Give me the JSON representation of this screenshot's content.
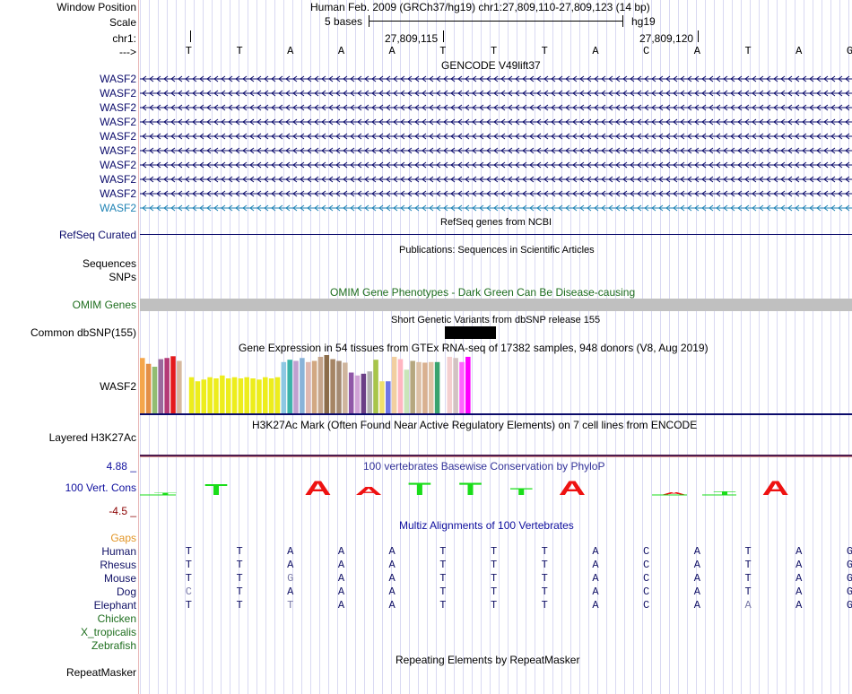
{
  "labels": {
    "window_position": "Window Position",
    "scale": "Scale",
    "chrom": "chr1:",
    "arrow": "--->",
    "wasf2_rows": [
      "WASF2",
      "WASF2",
      "WASF2",
      "WASF2",
      "WASF2",
      "WASF2",
      "WASF2",
      "WASF2",
      "WASF2",
      "WASF2"
    ],
    "refseq": "RefSeq Curated",
    "sequences": "Sequences",
    "snps": "SNPs",
    "omim": "OMIM Genes",
    "dbsnp": "Common dbSNP(155)",
    "gtex": "WASF2",
    "h3k27ac": "Layered H3K27Ac",
    "phylop_max": "4.88 _",
    "phylop_name": "100 Vert. Cons",
    "phylop_min": "-4.5 _",
    "gaps": "Gaps",
    "species": [
      "Human",
      "Rhesus",
      "Mouse",
      "Dog",
      "Elephant",
      "Chicken",
      "X_tropicalis",
      "Zebrafish"
    ],
    "repeatmasker": "RepeatMasker"
  },
  "header": {
    "position": "Human Feb. 2009 (GRCh37/hg19)   chr1:27,809,110-27,809,123 (14 bp)",
    "scale_label": "5 bases",
    "assembly": "hg19",
    "coord1": "27,809,115",
    "coord2": "27,809,120"
  },
  "sequence": [
    "T",
    "T",
    "A",
    "A",
    "A",
    "T",
    "T",
    "T",
    "A",
    "C",
    "A",
    "T",
    "A",
    "G"
  ],
  "track_titles": {
    "gencode": "GENCODE V49lift37",
    "refseq": "RefSeq genes from NCBI",
    "publications": "Publications: Sequences in Scientific Articles",
    "omim": "OMIM Gene Phenotypes - Dark Green Can Be Disease-causing",
    "dbsnp": "Short Genetic Variants from dbSNP release 155",
    "gtex": "Gene Expression in 54 tissues from GTEx RNA-seq of 17382 samples, 948 donors (V8, Aug 2019)",
    "h3k27ac": "H3K27Ac Mark (Often Found Near Active Regulatory Elements) on 7 cell lines from ENCODE",
    "phylop": "100 vertebrates Basewise Conservation by PhyloP",
    "multiz": "Multiz Alignments of 100 Vertebrates",
    "repeatmasker": "Repeating Elements by RepeatMasker"
  },
  "alignments": [
    [
      "T",
      "T",
      "A",
      "A",
      "A",
      "T",
      "T",
      "T",
      "A",
      "C",
      "A",
      "T",
      "A",
      "G"
    ],
    [
      "T",
      "T",
      "A",
      "A",
      "A",
      "T",
      "T",
      "T",
      "A",
      "C",
      "A",
      "T",
      "A",
      "G"
    ],
    [
      "T",
      "T",
      "G",
      "A",
      "A",
      "T",
      "T",
      "T",
      "A",
      "C",
      "A",
      "T",
      "A",
      "G"
    ],
    [
      "C",
      "T",
      "A",
      "A",
      "A",
      "T",
      "T",
      "T",
      "A",
      "C",
      "A",
      "T",
      "A",
      "G"
    ],
    [
      "T",
      "T",
      "T",
      "A",
      "A",
      "T",
      "T",
      "T",
      "A",
      "C",
      "A",
      "A",
      "A",
      "G"
    ]
  ],
  "alignment_dim": [
    [],
    [],
    [
      2
    ],
    [
      0
    ],
    [
      2,
      11
    ]
  ],
  "phylop": [
    0.3,
    1.6,
    0,
    2.0,
    1.2,
    1.8,
    1.8,
    1.0,
    2.0,
    0,
    0.4,
    0.5,
    2.0,
    0
  ],
  "gtex_colors": [
    "#f5a64b",
    "#e48f46",
    "#92bd73",
    "#9b6a9d",
    "#b43a77",
    "#e41a1c",
    "#d7b89e",
    "#ffffff",
    "#eded1c",
    "#eded1c",
    "#eded1c",
    "#eded1c",
    "#eded1c",
    "#eded1c",
    "#eded1c",
    "#eded1c",
    "#eded1c",
    "#eded1c",
    "#eded1c",
    "#eded1c",
    "#eded1c",
    "#eded1c",
    "#eded1c",
    "#8dc8e3",
    "#3cb3a9",
    "#c0a0d0",
    "#89b3d8",
    "#e0b8b0",
    "#d2a882",
    "#c5a58c",
    "#8b6c4a",
    "#a68564",
    "#a48a72",
    "#cfb59d",
    "#9057a8",
    "#d0a2d6",
    "#6b3f86",
    "#b0b0b0",
    "#a8c54a",
    "#f0e06c",
    "#6f76e6",
    "#f2cfa0",
    "#ffb6c1",
    "#c9e5b9",
    "#b5a77f",
    "#dcc0a6",
    "#d9b190",
    "#e1c3a5",
    "#3aa36e",
    "#ffffff",
    "#f4cfcf",
    "#d2c2c2",
    "#ff66ff",
    "#ff00ff"
  ],
  "gtex_values": [
    0.95,
    0.85,
    0.8,
    0.93,
    0.95,
    0.98,
    0.9,
    0.0,
    0.62,
    0.55,
    0.58,
    0.62,
    0.6,
    0.65,
    0.6,
    0.62,
    0.6,
    0.62,
    0.6,
    0.58,
    0.62,
    0.6,
    0.62,
    0.88,
    0.92,
    0.9,
    0.95,
    0.88,
    0.9,
    0.97,
    1.0,
    0.93,
    0.9,
    0.87,
    0.7,
    0.65,
    0.68,
    0.72,
    0.92,
    0.55,
    0.55,
    0.97,
    0.93,
    0.75,
    0.9,
    0.88,
    0.87,
    0.88,
    0.88,
    0.0,
    0.97,
    0.95,
    0.88,
    0.97
  ],
  "colors": {
    "navy": "#0b0b6b",
    "gencode_last": "#1e82b4",
    "omim": "#1e6e1e",
    "gaps": "#e29526",
    "species_mammal": "#111166",
    "species_nonmammal": "#1e6e1e",
    "phylop_pos": "#0f0f9e",
    "phylop_neg": "#8b0000",
    "cons_green": "#19dd19",
    "cons_red": "#ee1111",
    "h3k27ac": "#4d1a4d"
  }
}
